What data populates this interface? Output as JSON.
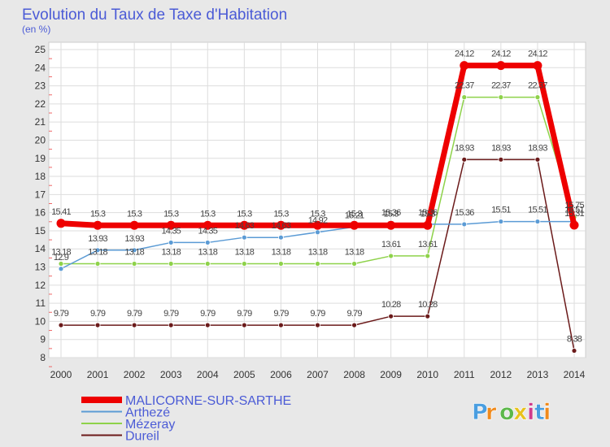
{
  "chart_data": {
    "type": "line",
    "title": "Evolution du Taux de Taxe d'Habitation",
    "subtitle": "(en %)",
    "xlabel": "",
    "ylabel": "",
    "x": [
      2000,
      2001,
      2002,
      2003,
      2004,
      2005,
      2006,
      2007,
      2008,
      2009,
      2010,
      2011,
      2012,
      2013,
      2014
    ],
    "ylim": [
      8,
      25
    ],
    "yticks": [
      8,
      9,
      10,
      11,
      12,
      13,
      14,
      15,
      16,
      17,
      18,
      19,
      20,
      21,
      22,
      23,
      24,
      25
    ],
    "grid": true,
    "legend_position": "bottom-left",
    "series": [
      {
        "name": "MALICORNE-SUR-SARTHE",
        "color": "#ee0000",
        "values": [
          15.41,
          15.3,
          15.3,
          15.3,
          15.3,
          15.3,
          15.3,
          15.3,
          15.3,
          15.3,
          15.3,
          24.12,
          24.12,
          24.12,
          15.31
        ]
      },
      {
        "name": "Arthezé",
        "color": "#5b9bd5",
        "values": [
          12.9,
          13.93,
          13.93,
          14.35,
          14.35,
          14.63,
          14.63,
          14.92,
          15.21,
          15.36,
          15.36,
          15.36,
          15.51,
          15.51,
          15.51
        ]
      },
      {
        "name": "Mézeray",
        "color": "#8ed24a",
        "values": [
          13.18,
          13.18,
          13.18,
          13.18,
          13.18,
          13.18,
          13.18,
          13.18,
          13.18,
          13.61,
          13.61,
          22.37,
          22.37,
          22.37,
          15.75
        ]
      },
      {
        "name": "Dureil",
        "color": "#6b1a1a",
        "values": [
          9.79,
          9.79,
          9.79,
          9.79,
          9.79,
          9.79,
          9.79,
          9.79,
          9.79,
          10.28,
          10.28,
          18.93,
          18.93,
          18.93,
          8.38
        ]
      }
    ]
  },
  "branding": {
    "logo_text": "Proxiti",
    "logo_colors": [
      "#4a9ee0",
      "#f08a1c",
      "#5cb84a",
      "#e8c21c",
      "#d03a8c",
      "#4a9ee0",
      "#f08a1c"
    ]
  }
}
